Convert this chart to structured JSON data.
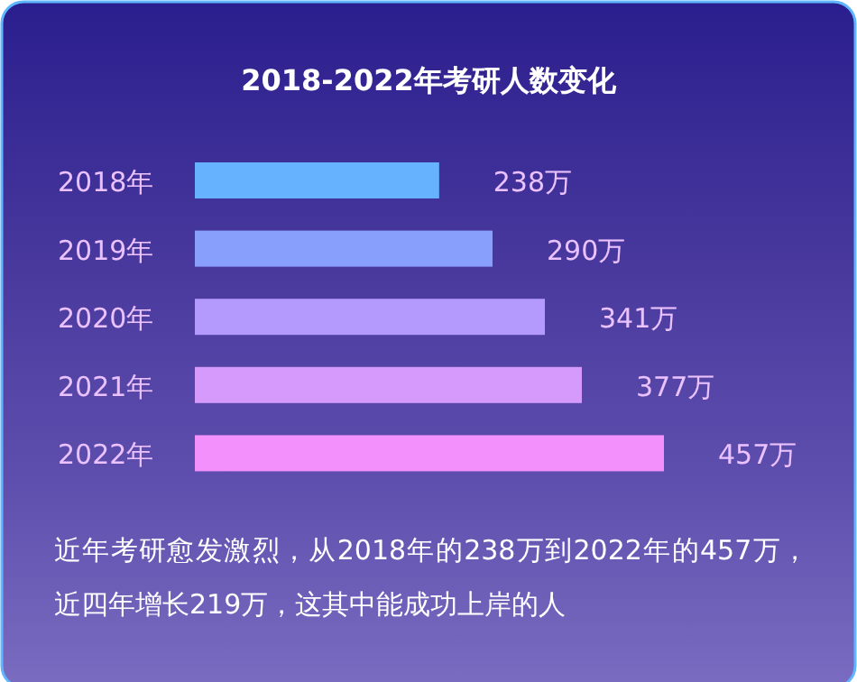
{
  "chart_data": {
    "type": "bar",
    "orientation": "horizontal",
    "title": "2018-2022年考研人数变化",
    "categories": [
      "2018年",
      "2019年",
      "2020年",
      "2021年",
      "2022年"
    ],
    "values": [
      238,
      290,
      341,
      377,
      457
    ],
    "colors": [
      "#66b2ff",
      "#88a0fc",
      "#b39afc",
      "#d69afc",
      "#f490fc"
    ],
    "value_labels": [
      "238万",
      "290万",
      "341万",
      "377万",
      "457万"
    ],
    "relative": false,
    "annotations": [
      "近年考研愈发激烈，从2018年的238万到2022年的457万，近四年增长219万，这其中能成功上岸的人"
    ]
  }
}
